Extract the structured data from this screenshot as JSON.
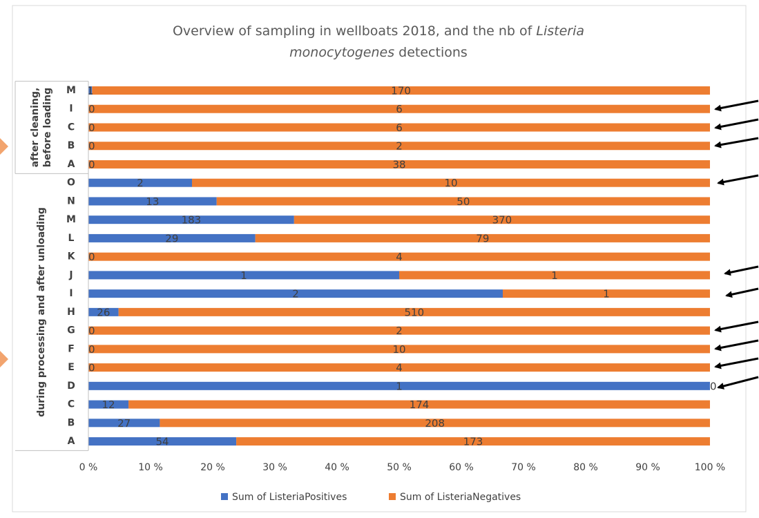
{
  "chart_data": {
    "type": "bar",
    "orientation": "horizontal",
    "stacked": "percent",
    "title": [
      "Overview of sampling in wellboats 2018, and the nb of",
      "Listeria",
      "monocytogenes",
      "detections"
    ],
    "groups": [
      {
        "name": [
          "after cleaning,",
          "before loading"
        ],
        "categories": [
          "M",
          "I",
          "C",
          "B",
          "A"
        ]
      },
      {
        "name": [
          "during processing and after unloading"
        ],
        "categories": [
          "O",
          "N",
          "M",
          "L",
          "K",
          "J",
          "I",
          "H",
          "G",
          "F",
          "E",
          "D",
          "C",
          "B",
          "A"
        ]
      }
    ],
    "series": [
      {
        "name": "Sum of ListeriaPositives",
        "color": "#4472c4",
        "values": [
          1,
          0,
          0,
          0,
          0,
          2,
          13,
          183,
          29,
          0,
          1,
          2,
          26,
          0,
          0,
          0,
          1,
          12,
          27,
          54
        ]
      },
      {
        "name": "Sum of ListeriaNegatives",
        "color": "#ed7d31",
        "values": [
          170,
          6,
          6,
          2,
          38,
          10,
          50,
          370,
          79,
          4,
          1,
          1,
          510,
          2,
          10,
          4,
          0,
          174,
          208,
          173
        ]
      }
    ],
    "xlim": [
      0,
      100
    ],
    "xticks": [
      {
        "value": 0,
        "label": "0 %"
      },
      {
        "value": 10,
        "label": "10 %"
      },
      {
        "value": 20,
        "label": "20 %"
      },
      {
        "value": 30,
        "label": "30 %"
      },
      {
        "value": 40,
        "label": "40 %"
      },
      {
        "value": 50,
        "label": "50 %"
      },
      {
        "value": 60,
        "label": "60 %"
      },
      {
        "value": 70,
        "label": "70 %"
      },
      {
        "value": 80,
        "label": "80 %"
      },
      {
        "value": 90,
        "label": "90 %"
      },
      {
        "value": 100,
        "label": "100 %"
      }
    ],
    "legend": "bottom"
  }
}
